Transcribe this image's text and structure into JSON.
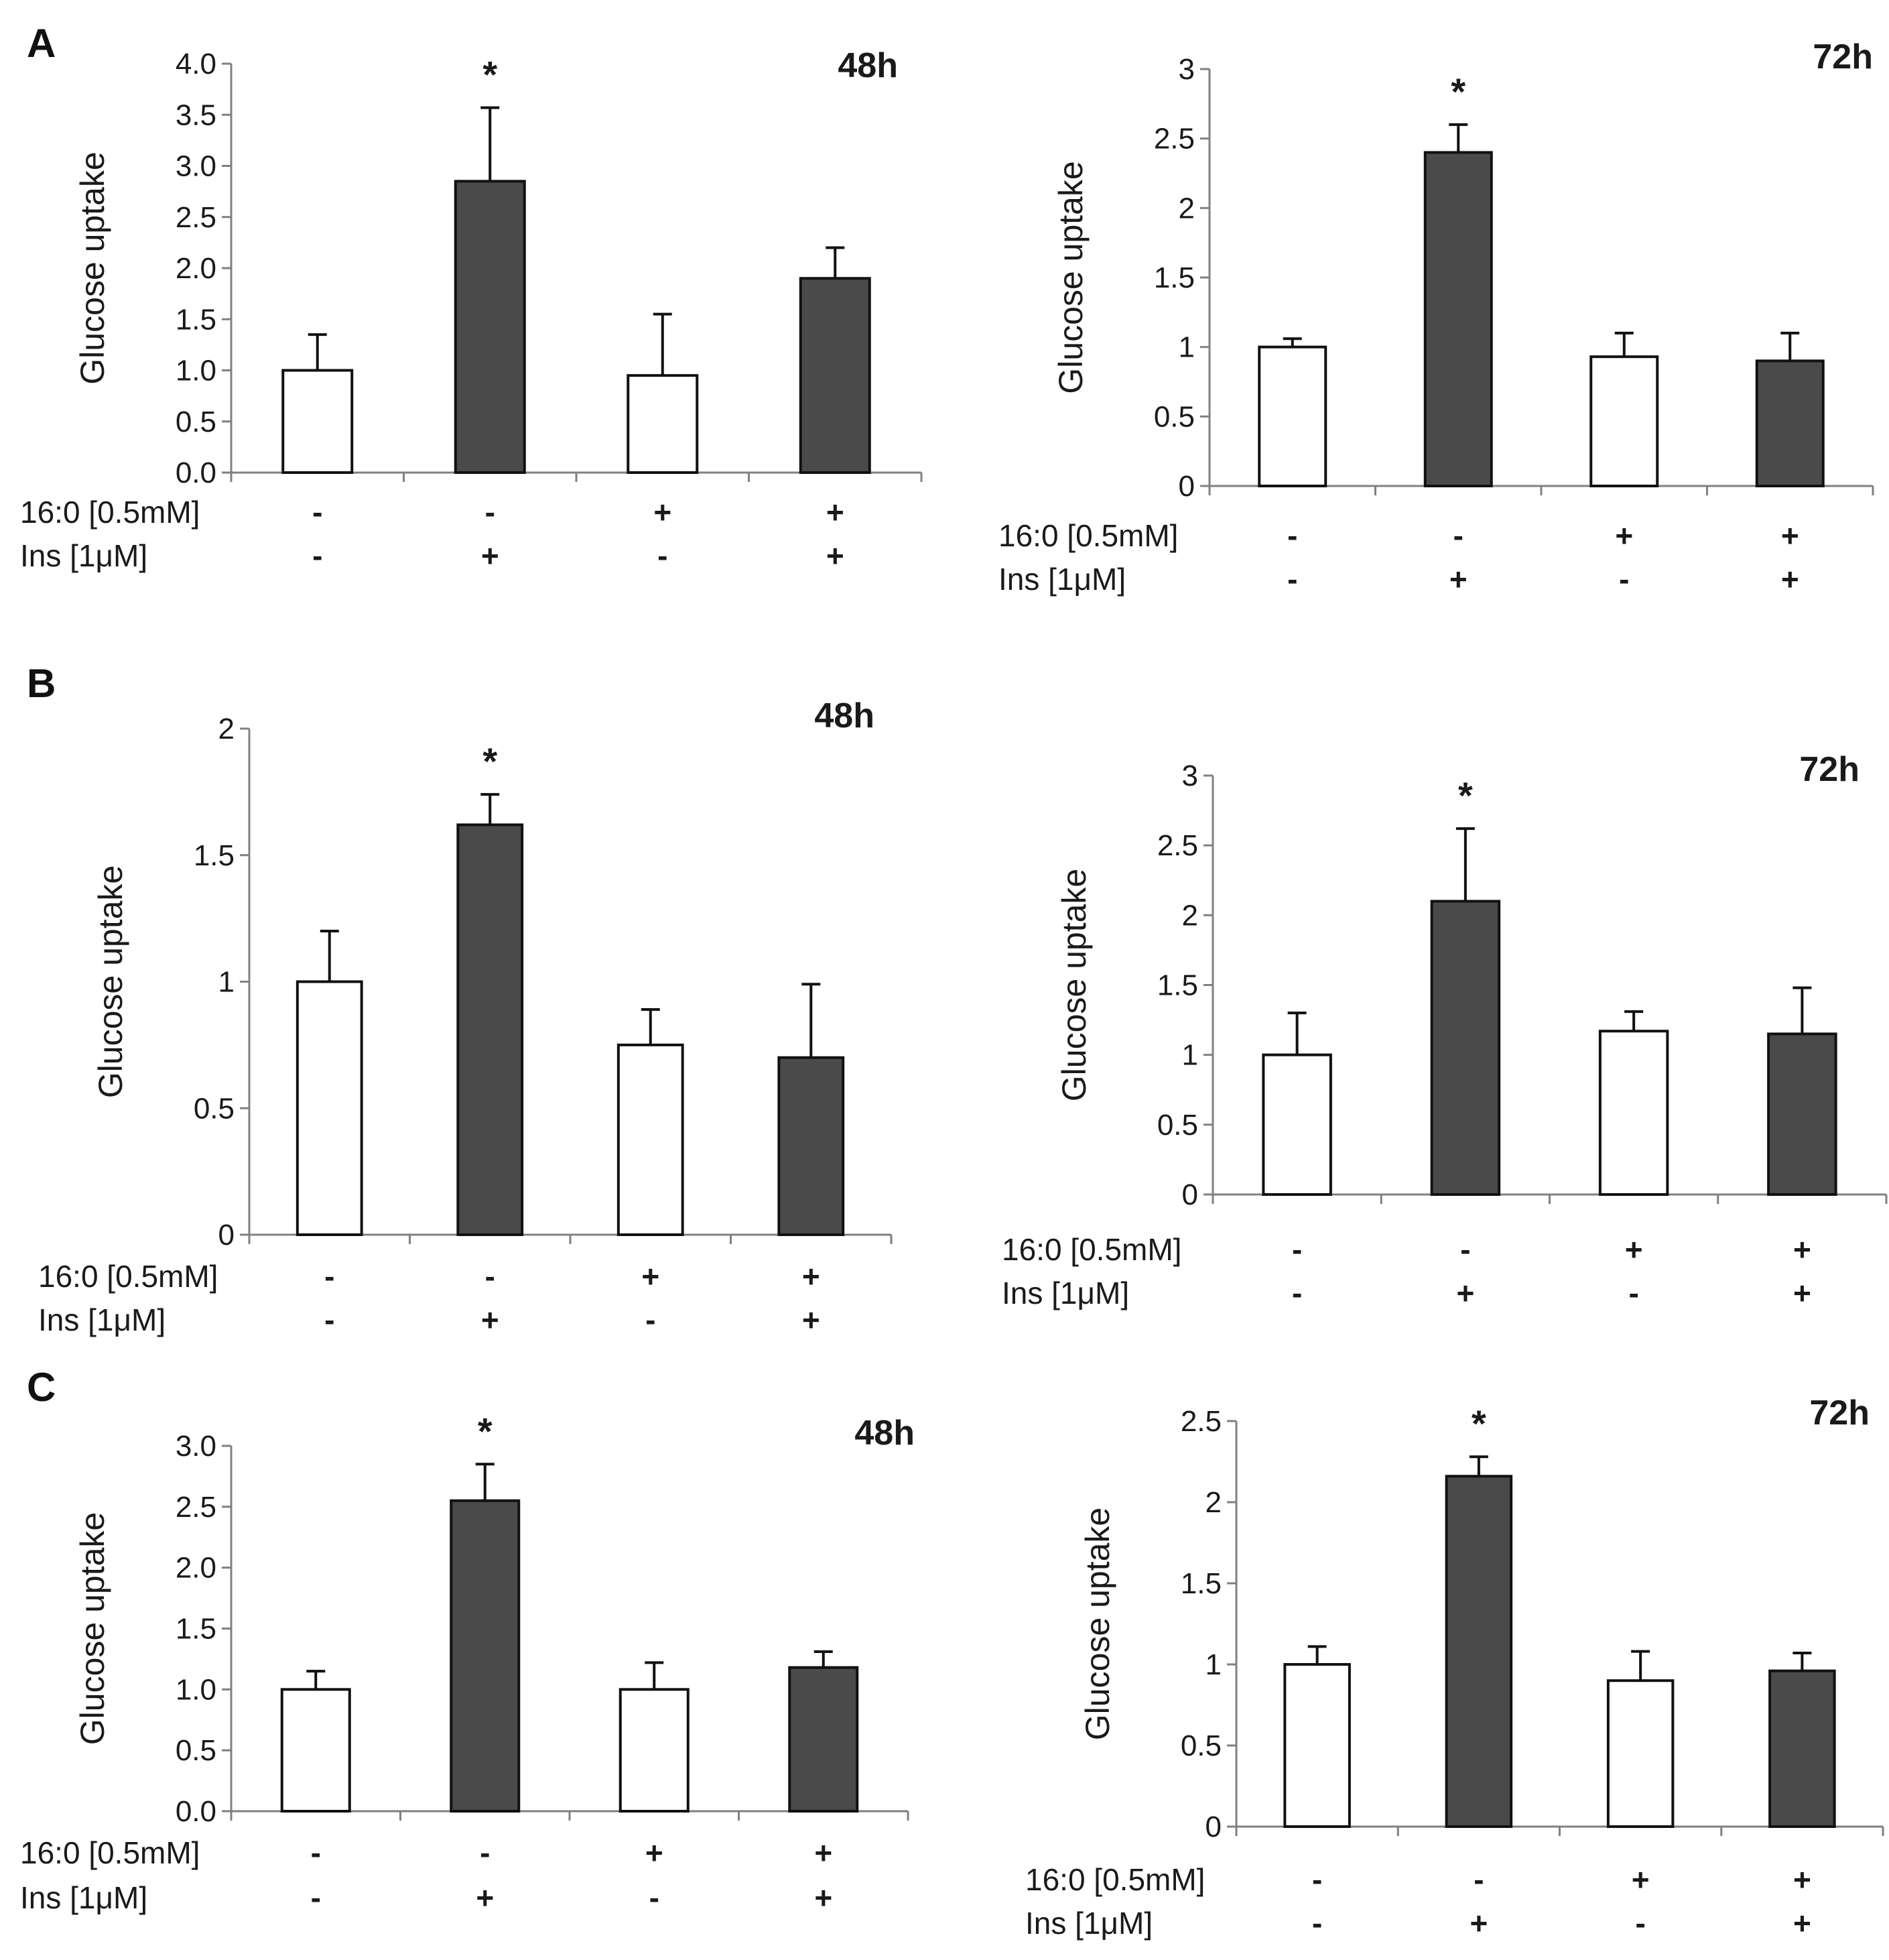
{
  "colors": {
    "insulin_bar": "#4a4a4a",
    "control_bar": "#ffffff",
    "axis": "#808080",
    "text": "#1a1a1a"
  },
  "figure": {
    "rows": [
      {
        "letter": "A"
      },
      {
        "letter": "B"
      },
      {
        "letter": "C"
      }
    ],
    "row_labels": [
      "16:0 [0.5mM]",
      "Ins [1μM]"
    ],
    "significance_marker": "*"
  },
  "chart_data": [
    {
      "id": "A-48h",
      "panel": "A",
      "type": "bar",
      "title": "48h",
      "ylabel": "Glucose uptake",
      "ylim": [
        0,
        4.0
      ],
      "yticks": [
        0,
        0.5,
        1.0,
        1.5,
        2.0,
        2.5,
        3.0,
        3.5,
        4.0
      ],
      "ytick_labels": [
        "0.0",
        "0.5",
        "1.0",
        "1.5",
        "2.0",
        "2.5",
        "3.0",
        "3.5",
        "4.0"
      ],
      "categories": [
        [
          "-",
          "-"
        ],
        [
          "-",
          "+"
        ],
        [
          "+",
          "-"
        ],
        [
          "+",
          "+"
        ]
      ],
      "values": [
        1.0,
        2.85,
        0.95,
        1.9
      ],
      "errors": [
        0.35,
        0.72,
        0.6,
        0.3
      ],
      "significant": [
        false,
        true,
        false,
        false
      ]
    },
    {
      "id": "A-72h",
      "panel": "A",
      "type": "bar",
      "title": "72h",
      "ylabel": "Glucose uptake",
      "ylim": [
        0,
        3
      ],
      "yticks": [
        0,
        0.5,
        1,
        1.5,
        2,
        2.5,
        3
      ],
      "ytick_labels": [
        "0",
        "0.5",
        "1",
        "1.5",
        "2",
        "2.5",
        "3"
      ],
      "categories": [
        [
          "-",
          "-"
        ],
        [
          "-",
          "+"
        ],
        [
          "+",
          "-"
        ],
        [
          "+",
          "+"
        ]
      ],
      "values": [
        1.0,
        2.4,
        0.93,
        0.9
      ],
      "errors": [
        0.06,
        0.2,
        0.17,
        0.2
      ],
      "significant": [
        false,
        true,
        false,
        false
      ]
    },
    {
      "id": "B-48h",
      "panel": "B",
      "type": "bar",
      "title": "48h",
      "ylabel": "Glucose uptake",
      "ylim": [
        0,
        2
      ],
      "yticks": [
        0,
        0.5,
        1,
        1.5,
        2
      ],
      "ytick_labels": [
        "0",
        "0.5",
        "1",
        "1.5",
        "2"
      ],
      "categories": [
        [
          "-",
          "-"
        ],
        [
          "-",
          "+"
        ],
        [
          "+",
          "-"
        ],
        [
          "+",
          "+"
        ]
      ],
      "values": [
        1.0,
        1.62,
        0.75,
        0.7
      ],
      "errors": [
        0.2,
        0.12,
        0.14,
        0.29
      ],
      "significant": [
        false,
        true,
        false,
        false
      ]
    },
    {
      "id": "B-72h",
      "panel": "B",
      "type": "bar",
      "title": "72h",
      "ylabel": "Glucose uptake",
      "ylim": [
        0,
        3
      ],
      "yticks": [
        0,
        0.5,
        1,
        1.5,
        2,
        2.5,
        3
      ],
      "ytick_labels": [
        "0",
        "0.5",
        "1",
        "1.5",
        "2",
        "2.5",
        "3"
      ],
      "categories": [
        [
          "-",
          "-"
        ],
        [
          "-",
          "+"
        ],
        [
          "+",
          "-"
        ],
        [
          "+",
          "+"
        ]
      ],
      "values": [
        1.0,
        2.1,
        1.17,
        1.15
      ],
      "errors": [
        0.3,
        0.52,
        0.14,
        0.33
      ],
      "significant": [
        false,
        true,
        false,
        false
      ]
    },
    {
      "id": "C-48h",
      "panel": "C",
      "type": "bar",
      "title": "48h",
      "ylabel": "Glucose uptake",
      "ylim": [
        0,
        3.0
      ],
      "yticks": [
        0,
        0.5,
        1.0,
        1.5,
        2.0,
        2.5,
        3.0
      ],
      "ytick_labels": [
        "0.0",
        "0.5",
        "1.0",
        "1.5",
        "2.0",
        "2.5",
        "3.0"
      ],
      "categories": [
        [
          "-",
          "-"
        ],
        [
          "-",
          "+"
        ],
        [
          "+",
          "-"
        ],
        [
          "+",
          "+"
        ]
      ],
      "values": [
        1.0,
        2.55,
        1.0,
        1.18
      ],
      "errors": [
        0.15,
        0.3,
        0.22,
        0.13
      ],
      "significant": [
        false,
        true,
        false,
        false
      ]
    },
    {
      "id": "C-72h",
      "panel": "C",
      "type": "bar",
      "title": "72h",
      "ylabel": "Glucose uptake",
      "ylim": [
        0,
        2.5
      ],
      "yticks": [
        0,
        0.5,
        1,
        1.5,
        2,
        2.5
      ],
      "ytick_labels": [
        "0",
        "0.5",
        "1",
        "1.5",
        "2",
        "2.5"
      ],
      "categories": [
        [
          "-",
          "-"
        ],
        [
          "-",
          "+"
        ],
        [
          "+",
          "-"
        ],
        [
          "+",
          "+"
        ]
      ],
      "values": [
        1.0,
        2.16,
        0.9,
        0.96
      ],
      "errors": [
        0.11,
        0.12,
        0.18,
        0.11
      ],
      "significant": [
        false,
        true,
        false,
        false
      ]
    }
  ]
}
